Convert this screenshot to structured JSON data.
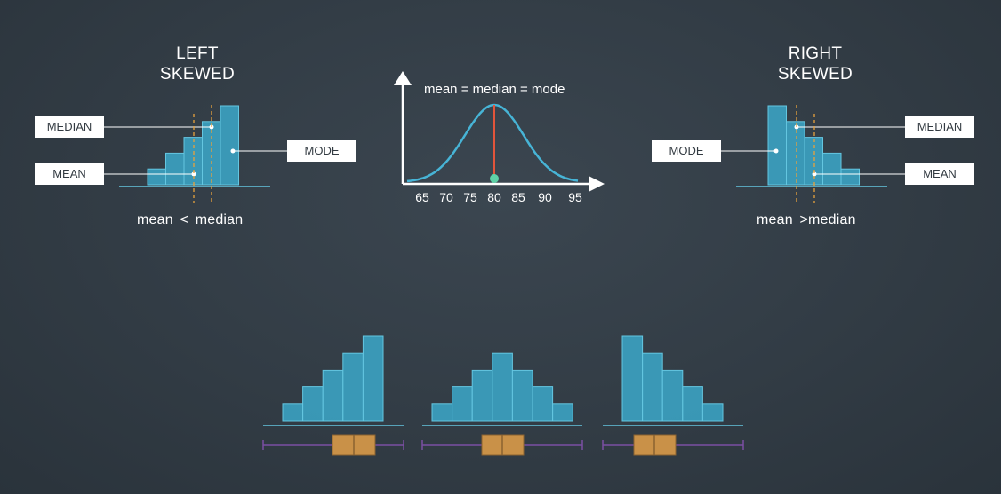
{
  "left_panel": {
    "title_line1": "LEFT",
    "title_line2": "SKEWED",
    "median_label": "MEDIAN",
    "mean_label": "MEAN",
    "mode_label": "MODE",
    "caption_left": "mean",
    "caption_op": "<",
    "caption_right": "median"
  },
  "right_panel": {
    "title_line1": "RIGHT",
    "title_line2": "SKEWED",
    "median_label": "MEDIAN",
    "mean_label": "MEAN",
    "mode_label": "MODE",
    "caption_left": "mean",
    "caption_op": ">",
    "caption_right": "median"
  },
  "normal_panel": {
    "label": "mean = median = mode",
    "ticks": [
      "65",
      "70",
      "75",
      "80",
      "85",
      "90",
      "95"
    ]
  },
  "colors": {
    "background": "#323c45",
    "bar_fill": "#3ba2c2",
    "bar_stroke": "#64c6e0",
    "curve": "#47b4d6",
    "center_line": "#e2553b",
    "mode_dot": "#5fd1a7",
    "dashed_line": "#e8a23c",
    "box": "#c99148",
    "whisker": "#7a4fa3"
  },
  "chart_data": [
    {
      "type": "bar",
      "name_hint": "left-skewed",
      "values": [
        1,
        2,
        3,
        4,
        5
      ]
    },
    {
      "type": "bar",
      "name_hint": "symmetric",
      "values": [
        1,
        2,
        3,
        4,
        3,
        2,
        1
      ]
    },
    {
      "type": "bar",
      "name_hint": "right-skewed",
      "values": [
        5,
        4,
        3,
        2,
        1
      ]
    }
  ]
}
